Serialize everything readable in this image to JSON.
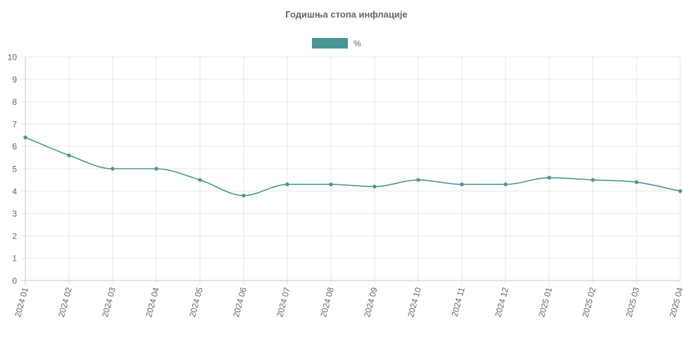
{
  "chart_data": {
    "type": "line",
    "title": "Годишња стопа инфлације",
    "legend": {
      "position": "top",
      "labels": [
        "%"
      ]
    },
    "categories": [
      "2024 01",
      "2024 02",
      "2024 03",
      "2024 04",
      "2024 05",
      "2024 06",
      "2024 07",
      "2024 08",
      "2024 09",
      "2024 10",
      "2024 11",
      "2024 12",
      "2025 01",
      "2025 02",
      "2025 03",
      "2025 04"
    ],
    "series": [
      {
        "name": "%",
        "values": [
          6.4,
          5.6,
          5.0,
          5.0,
          4.5,
          3.8,
          4.3,
          4.3,
          4.2,
          4.5,
          4.3,
          4.3,
          4.6,
          4.5,
          4.4,
          4.0
        ]
      }
    ],
    "yticks": [
      "0",
      "1",
      "2",
      "3",
      "4",
      "5",
      "6",
      "7",
      "8",
      "9",
      "10"
    ],
    "ylim": [
      0,
      10
    ],
    "grid": true,
    "colors": {
      "series": "#4a9594",
      "grid": "#e6e6e6",
      "axis": "#c8c8c8",
      "text": "#666666"
    }
  }
}
